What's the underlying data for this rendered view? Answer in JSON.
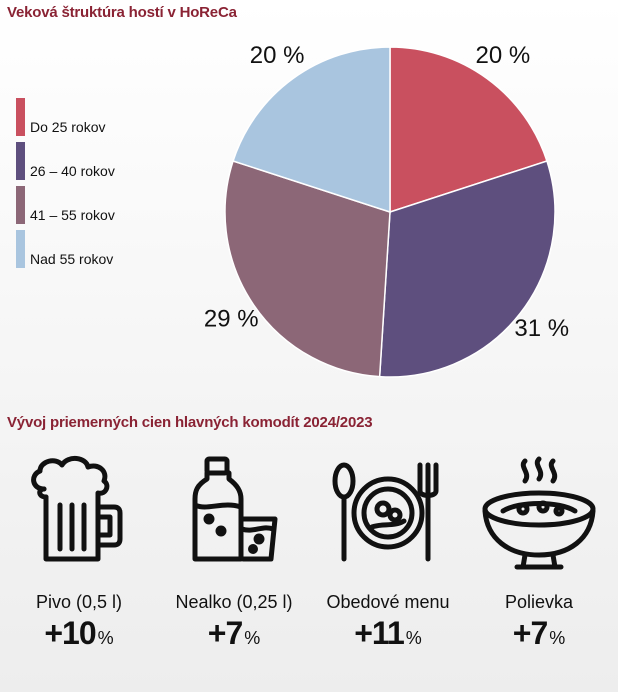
{
  "chart_data": {
    "type": "pie",
    "title": "Veková štruktúra hostí v HoReCa",
    "legend_position": "left",
    "slices": [
      {
        "label": "Do 25 rokov",
        "value": 20,
        "value_label": "20 %",
        "color": "#c9505f"
      },
      {
        "label": "26 – 40 rokov",
        "value": 31,
        "value_label": "31 %",
        "color": "#5e4f7e"
      },
      {
        "label": "41 – 55 rokov",
        "value": 29,
        "value_label": "29 %",
        "color": "#8c6777"
      },
      {
        "label": "Nad 55 rokov",
        "value": 20,
        "value_label": "20 %",
        "color": "#a9c5df"
      }
    ]
  },
  "commodities": {
    "title": "Vývoj priemerných cien hlavných komodít 2024/2023",
    "items": [
      {
        "icon": "beer-mug-icon",
        "label": "Pivo (0,5 l)",
        "value": "+10",
        "unit": "%",
        "change_percent": 10
      },
      {
        "icon": "soft-drink-icon",
        "label": "Nealko (0,25 l)",
        "value": "+7",
        "unit": "%",
        "change_percent": 7
      },
      {
        "icon": "lunch-menu-icon",
        "label": "Obedové menu",
        "value": "+11",
        "unit": "%",
        "change_percent": 11
      },
      {
        "icon": "soup-bowl-icon",
        "label": "Polievka",
        "value": "+7",
        "unit": "%",
        "change_percent": 7
      }
    ]
  },
  "colors": {
    "title": "#8a2334",
    "text": "#111111"
  }
}
